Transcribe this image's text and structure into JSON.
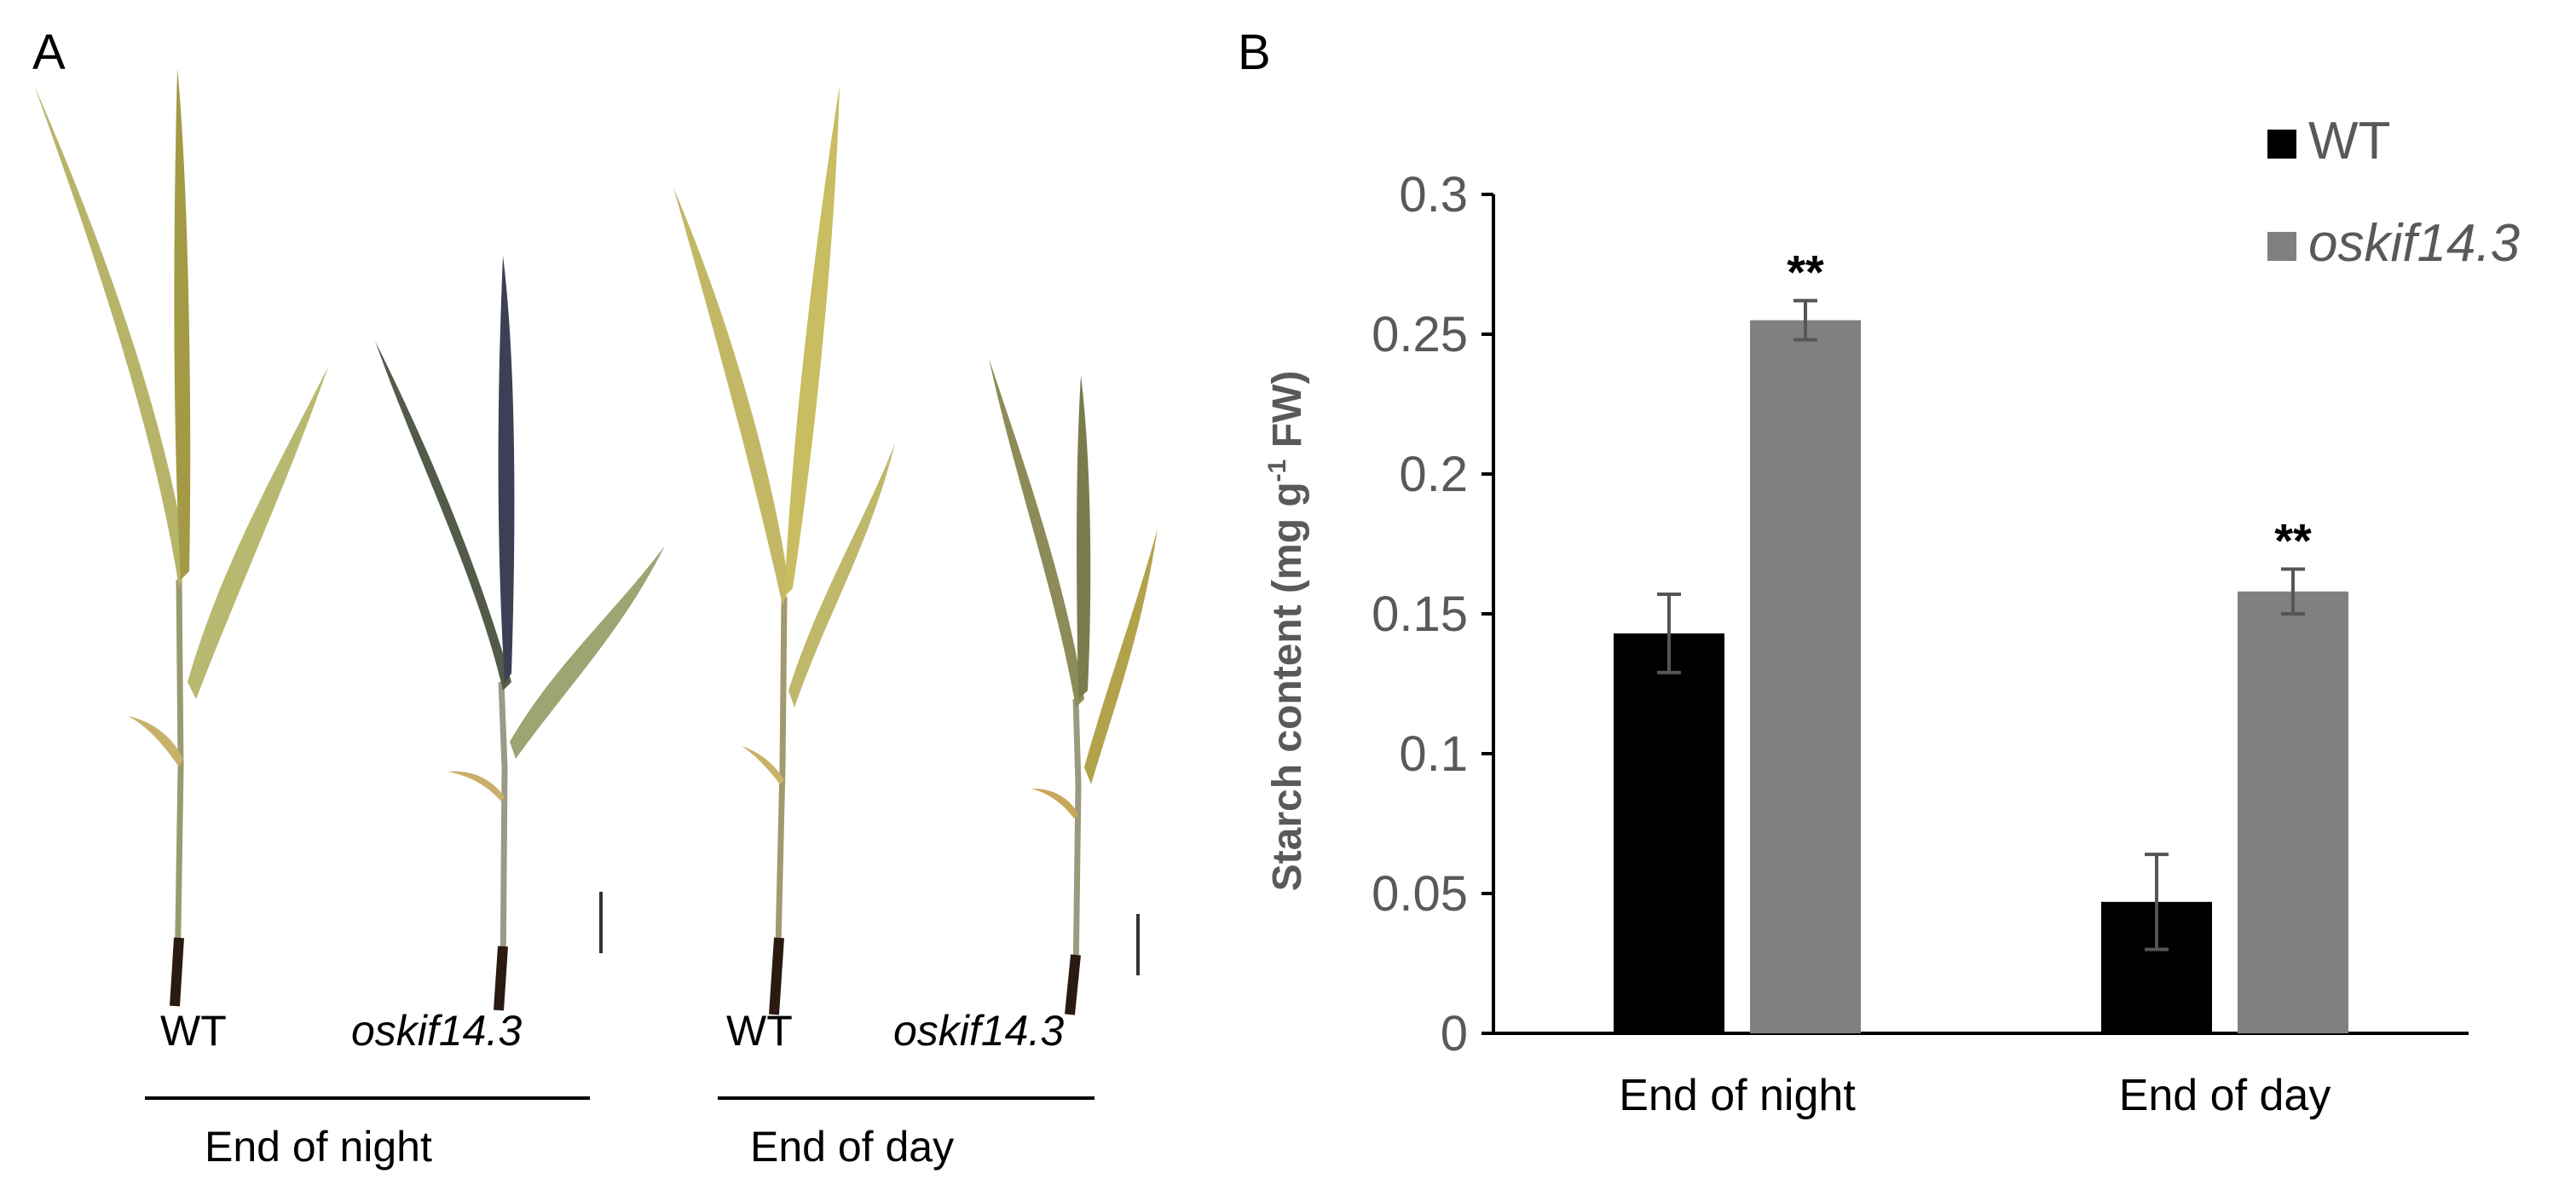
{
  "panel_a": {
    "letter": "A",
    "labels": {
      "wt_night": "WT",
      "mut_night": "oskif14.3",
      "wt_day": "WT",
      "mut_day": "oskif14.3"
    },
    "groups": {
      "night": "End of night",
      "day": "End of day"
    }
  },
  "panel_b": {
    "letter": "B"
  },
  "colors": {
    "wt": "#000000",
    "mutant": "#808080",
    "error_bar": "#555555",
    "axis": "#000000",
    "tick_text": "#595959"
  },
  "chart_data": {
    "type": "bar",
    "categories": [
      "End of night",
      "End of day"
    ],
    "series": [
      {
        "name": "WT",
        "values": [
          0.143,
          0.047
        ],
        "errors": [
          0.014,
          0.017
        ],
        "color": "#000000",
        "italic": false
      },
      {
        "name": "oskif14.3",
        "values": [
          0.255,
          0.158
        ],
        "errors": [
          0.007,
          0.008
        ],
        "color": "#808080",
        "italic": true
      }
    ],
    "annotations": [
      {
        "series": 1,
        "category": 0,
        "text": "**"
      },
      {
        "series": 1,
        "category": 1,
        "text": "**"
      }
    ],
    "ylabel": "Starch content (mg g-1 FW)",
    "ylabel_parts": {
      "main": "Starch content (mg g",
      "sup": "-1",
      "tail": " FW)"
    },
    "ylim": [
      0,
      0.3
    ],
    "yticks": [
      "0",
      "0.05",
      "0.1",
      "0.15",
      "0.2",
      "0.25",
      "0.3"
    ],
    "legend_position": "top-right",
    "grid": false
  }
}
